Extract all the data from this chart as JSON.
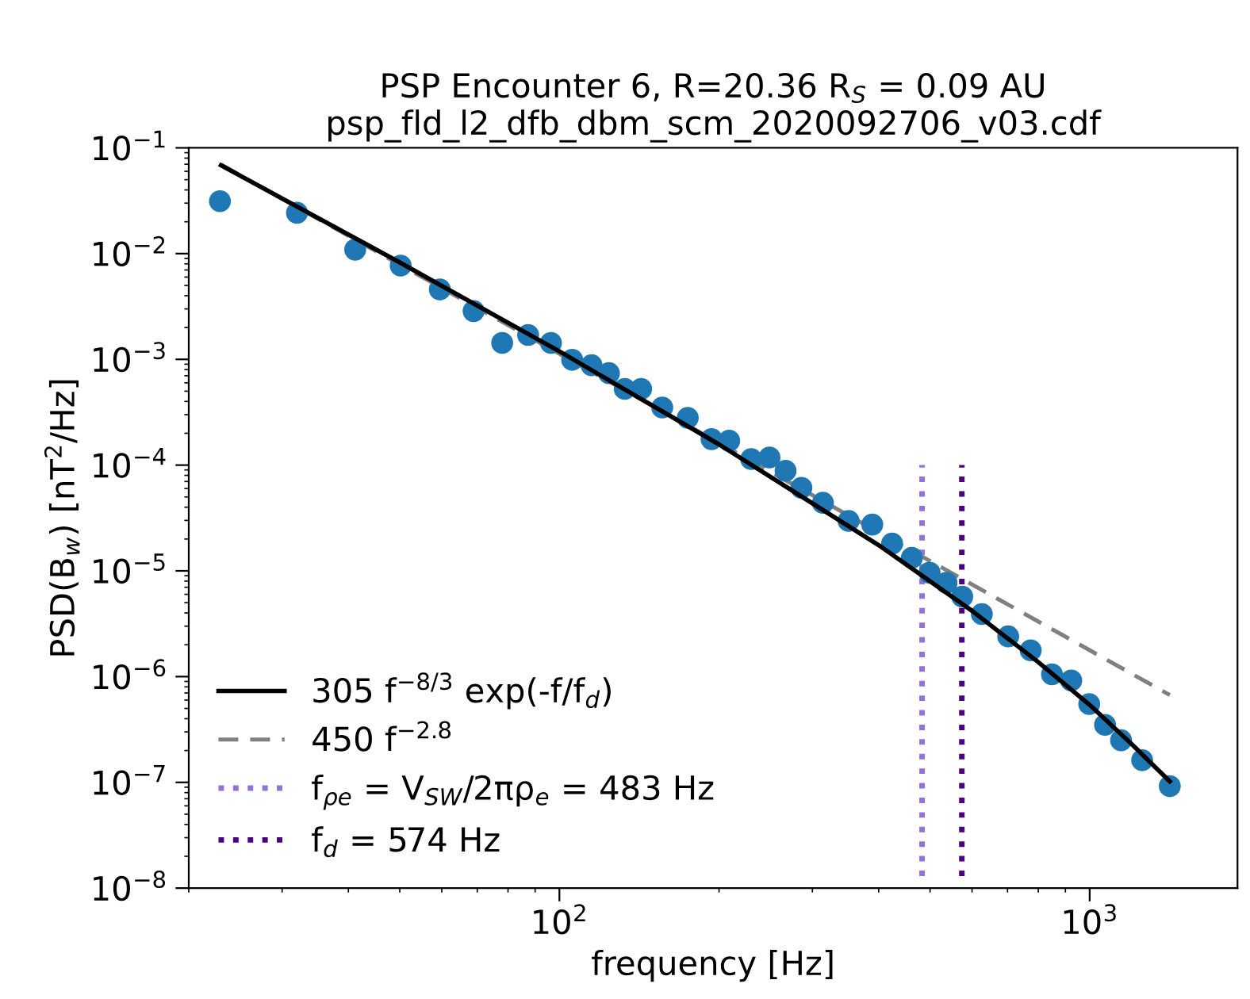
{
  "chart_data": {
    "type": "scatter",
    "title": "PSP Encounter 6, R=20.36 R$_{S}$ = 0.09 AU\npsp_fld_l2_dfb_dbm_scm_2020092706_v03.cdf",
    "xlabel": "frequency [Hz]",
    "ylabel": "PSD(B$_{w}$) [nT$^{2}$/Hz]",
    "log": "xy",
    "xlim": [
      20,
      1900
    ],
    "ylim": [
      1e-08,
      0.1
    ],
    "xticks": [
      {
        "value": 100,
        "label": "10$^{2}$"
      },
      {
        "value": 1000,
        "label": "10$^{3}$"
      }
    ],
    "yticks": [
      {
        "value": 1e-08,
        "label": "10$^{−8}$"
      },
      {
        "value": 1e-07,
        "label": "10$^{−7}$"
      },
      {
        "value": 1e-06,
        "label": "10$^{−6}$"
      },
      {
        "value": 1e-05,
        "label": "10$^{−5}$"
      },
      {
        "value": 0.0001,
        "label": "10$^{−4}$"
      },
      {
        "value": 0.001,
        "label": "10$^{−3}$"
      },
      {
        "value": 0.01,
        "label": "10$^{−2}$"
      },
      {
        "value": 0.1,
        "label": "10$^{−1}$"
      }
    ],
    "grid": false,
    "legend": "bottom left",
    "marker": "circle",
    "series": [
      {
        "color": "#1f77b4",
        "x": [
          22.9,
          32.0,
          41.2,
          50.2,
          59.5,
          68.9,
          78.0,
          87.3,
          96.4,
          105.7,
          115,
          124,
          132.8,
          142.6,
          156.3,
          174.6,
          193.6,
          209,
          230,
          249,
          267,
          286,
          314,
          351,
          389,
          424,
          462,
          499,
          537,
          575,
          626,
          702,
          774,
          849,
          923,
          998,
          1069,
          1146,
          1256,
          1416
        ],
        "values": [
          0.0313,
          0.0243,
          0.0109,
          0.0077,
          0.00458,
          0.00286,
          0.00143,
          0.0017,
          0.00143,
          0.00099,
          0.00088,
          0.00074,
          0.000526,
          0.000526,
          0.00035,
          0.00028,
          0.000176,
          0.00017,
          0.000114,
          0.000118,
          8.85e-05,
          6.1e-05,
          4.4e-05,
          2.97e-05,
          2.74e-05,
          1.81e-05,
          1.33e-05,
          9.6e-06,
          7.7e-06,
          5.7e-06,
          3.9e-06,
          2.4e-06,
          1.77e-06,
          1.05e-06,
          9.2e-07,
          5.5e-07,
          3.5e-07,
          2.5e-07,
          1.62e-07,
          9.2e-08
        ]
      },
      {
        "type": "line",
        "name": "305 f$^{−8/3}$ exp(-f/f$_{d}$)",
        "color": "#000000",
        "line_style": "solid",
        "marker": "none",
        "x": [
          23,
          50,
          100,
          200,
          400,
          600,
          800,
          1000,
          1200,
          1416
        ],
        "values": [
          0.0685,
          0.00825,
          0.00119,
          0.000157,
          1.75e-05,
          4.19e-06,
          1.37e-06,
          5.4e-07,
          2.3e-07,
          1.02e-07
        ]
      },
      {
        "type": "line",
        "name": "450 f$^{−2.8}$",
        "color": "#808080",
        "line_style": "dashed",
        "marker": "none",
        "x": [
          23,
          1416
        ],
        "values": [
          0.0695,
          6.7e-07
        ]
      },
      {
        "type": "line",
        "name": "f$_{ρe}$ = V$_{SW}$/2πρ$_{e}$ = 483 Hz",
        "color": "#9370db",
        "line_style": "dotted",
        "marker": "none",
        "x": [
          483,
          483
        ],
        "values": [
          1.3e-08,
          0.0001
        ]
      },
      {
        "type": "line",
        "name": "f$_{d}$ = 574 Hz",
        "color": "#4b0082",
        "line_style": "dotted",
        "marker": "none",
        "x": [
          574,
          574
        ],
        "values": [
          1.3e-08,
          0.0001
        ]
      }
    ]
  }
}
